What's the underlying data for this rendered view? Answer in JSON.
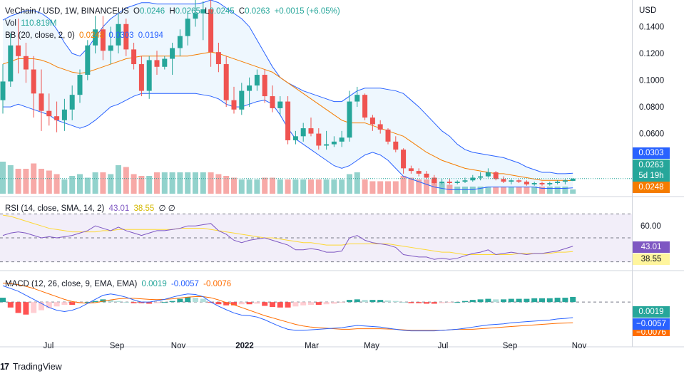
{
  "header": {
    "symbol": "VeChain / USD, 1W, BINANCEUS",
    "open_label": "O",
    "open": "0.0246",
    "high_label": "H",
    "high": "0.0265",
    "low_label": "L",
    "low": "0.0245",
    "close_label": "C",
    "close": "0.0263",
    "change": "+0.0015 (+6.05%)",
    "vol_label": "Vol",
    "vol": "110.819M",
    "bb_label": "BB (20, close, 2, 0)",
    "bb_mid": "0.0248",
    "bb_upper": "0.0303",
    "bb_lower": "0.0194"
  },
  "rsi_legend": {
    "label": "RSI (14, close, SMA, 14, 2)",
    "rsi": "43.01",
    "sma": "38.55",
    "extra": "∅ ∅"
  },
  "macd_legend": {
    "label": "MACD (12, 26, close, 9, EMA, EMA)",
    "hist": "0.0019",
    "macd": "-0.0057",
    "signal": "-0.0076"
  },
  "price_axis": {
    "currency": "USD",
    "ticks": [
      "0.1400",
      "0.1200",
      "0.1000",
      "0.0800",
      "0.0600"
    ]
  },
  "rsi_axis": {
    "ticks": [
      "60.00"
    ]
  },
  "price_tags": {
    "upper": "0.0303",
    "close": "0.0263",
    "countdown": "5d 19h",
    "mid": "0.0248"
  },
  "rsi_tags": {
    "rsi": "43.01",
    "sma": "38.55"
  },
  "macd_tags": {
    "hist": "0.0019",
    "macd": "−0.0057",
    "signal": "−0.0076"
  },
  "time_axis": [
    "Jul",
    "Sep",
    "Nov",
    "2022",
    "Mar",
    "May",
    "Jul",
    "Sep",
    "Nov"
  ],
  "branding": {
    "name": "TradingView"
  },
  "colors": {
    "up": "#26a69a",
    "down": "#ef5350",
    "bb_band": "#2962ff",
    "bb_mid": "#f57c00",
    "rsi_line": "#7e57c2",
    "rsi_sma": "#fdd835",
    "macd_line": "#2962ff",
    "signal_line": "#ff6d00"
  },
  "chart_data": {
    "type": "candlestick",
    "title": "VeChain / USD, 1W, BINANCEUS",
    "price_range": [
      0.015,
      0.16
    ],
    "weeks": 75,
    "ohlc": [
      [
        0.085,
        0.112,
        0.075,
        0.099
      ],
      [
        0.099,
        0.135,
        0.095,
        0.126
      ],
      [
        0.126,
        0.146,
        0.105,
        0.118
      ],
      [
        0.118,
        0.128,
        0.098,
        0.108
      ],
      [
        0.108,
        0.118,
        0.072,
        0.09
      ],
      [
        0.09,
        0.108,
        0.062,
        0.077
      ],
      [
        0.077,
        0.09,
        0.066,
        0.073
      ],
      [
        0.073,
        0.084,
        0.061,
        0.07
      ],
      [
        0.07,
        0.086,
        0.062,
        0.078
      ],
      [
        0.078,
        0.096,
        0.07,
        0.089
      ],
      [
        0.089,
        0.108,
        0.083,
        0.104
      ],
      [
        0.104,
        0.13,
        0.1,
        0.126
      ],
      [
        0.126,
        0.148,
        0.12,
        0.138
      ],
      [
        0.138,
        0.148,
        0.115,
        0.122
      ],
      [
        0.122,
        0.14,
        0.112,
        0.126
      ],
      [
        0.126,
        0.15,
        0.12,
        0.142
      ],
      [
        0.142,
        0.146,
        0.118,
        0.123
      ],
      [
        0.123,
        0.128,
        0.108,
        0.112
      ],
      [
        0.112,
        0.118,
        0.088,
        0.092
      ],
      [
        0.092,
        0.118,
        0.086,
        0.115
      ],
      [
        0.115,
        0.122,
        0.104,
        0.11
      ],
      [
        0.11,
        0.118,
        0.108,
        0.116
      ],
      [
        0.116,
        0.128,
        0.104,
        0.124
      ],
      [
        0.124,
        0.138,
        0.118,
        0.133
      ],
      [
        0.133,
        0.152,
        0.126,
        0.146
      ],
      [
        0.146,
        0.16,
        0.14,
        0.15
      ],
      [
        0.15,
        0.159,
        0.13,
        0.153
      ],
      [
        0.153,
        0.16,
        0.11,
        0.121
      ],
      [
        0.121,
        0.128,
        0.106,
        0.112
      ],
      [
        0.112,
        0.118,
        0.08,
        0.085
      ],
      [
        0.085,
        0.095,
        0.075,
        0.078
      ],
      [
        0.078,
        0.098,
        0.074,
        0.092
      ],
      [
        0.092,
        0.102,
        0.08,
        0.096
      ],
      [
        0.096,
        0.108,
        0.092,
        0.104
      ],
      [
        0.104,
        0.108,
        0.083,
        0.088
      ],
      [
        0.088,
        0.096,
        0.076,
        0.079
      ],
      [
        0.079,
        0.088,
        0.074,
        0.084
      ],
      [
        0.084,
        0.088,
        0.052,
        0.055
      ],
      [
        0.055,
        0.062,
        0.052,
        0.058
      ],
      [
        0.058,
        0.068,
        0.054,
        0.064
      ],
      [
        0.064,
        0.072,
        0.058,
        0.06
      ],
      [
        0.06,
        0.064,
        0.048,
        0.051
      ],
      [
        0.051,
        0.062,
        0.048,
        0.052
      ],
      [
        0.052,
        0.058,
        0.05,
        0.054
      ],
      [
        0.054,
        0.062,
        0.05,
        0.057
      ],
      [
        0.057,
        0.092,
        0.054,
        0.084
      ],
      [
        0.084,
        0.095,
        0.08,
        0.089
      ],
      [
        0.089,
        0.09,
        0.07,
        0.072
      ],
      [
        0.072,
        0.074,
        0.062,
        0.067
      ],
      [
        0.067,
        0.07,
        0.06,
        0.063
      ],
      [
        0.063,
        0.064,
        0.052,
        0.054
      ],
      [
        0.054,
        0.058,
        0.046,
        0.048
      ],
      [
        0.048,
        0.049,
        0.03,
        0.034
      ],
      [
        0.034,
        0.036,
        0.03,
        0.032
      ],
      [
        0.032,
        0.034,
        0.028,
        0.03
      ],
      [
        0.03,
        0.032,
        0.026,
        0.027
      ],
      [
        0.027,
        0.029,
        0.022,
        0.023
      ],
      [
        0.023,
        0.026,
        0.022,
        0.024
      ],
      [
        0.024,
        0.026,
        0.022,
        0.023
      ],
      [
        0.023,
        0.025,
        0.022,
        0.024
      ],
      [
        0.024,
        0.027,
        0.023,
        0.025
      ],
      [
        0.025,
        0.029,
        0.024,
        0.027
      ],
      [
        0.027,
        0.031,
        0.025,
        0.028
      ],
      [
        0.028,
        0.034,
        0.027,
        0.031
      ],
      [
        0.031,
        0.032,
        0.025,
        0.026
      ],
      [
        0.026,
        0.028,
        0.023,
        0.024
      ],
      [
        0.024,
        0.026,
        0.022,
        0.025
      ],
      [
        0.025,
        0.026,
        0.023,
        0.024
      ],
      [
        0.024,
        0.025,
        0.021,
        0.022
      ],
      [
        0.022,
        0.024,
        0.021,
        0.023
      ],
      [
        0.023,
        0.024,
        0.021,
        0.022
      ],
      [
        0.022,
        0.024,
        0.021,
        0.023
      ],
      [
        0.023,
        0.025,
        0.022,
        0.024
      ],
      [
        0.024,
        0.026,
        0.022,
        0.025
      ],
      [
        0.0246,
        0.0265,
        0.0245,
        0.0263
      ]
    ],
    "volume_range": [
      0,
      180
    ],
    "volume": [
      90,
      80,
      70,
      70,
      85,
      70,
      65,
      55,
      40,
      50,
      55,
      45,
      60,
      60,
      55,
      80,
      75,
      55,
      50,
      50,
      60,
      60,
      60,
      60,
      60,
      60,
      60,
      60,
      55,
      50,
      45,
      40,
      40,
      40,
      45,
      45,
      40,
      40,
      40,
      40,
      40,
      40,
      40,
      40,
      40,
      55,
      60,
      40,
      35,
      35,
      35,
      35,
      50,
      45,
      40,
      40,
      40,
      30,
      25,
      20,
      20,
      20,
      20,
      20,
      20,
      20,
      20,
      20,
      20,
      20,
      20,
      20,
      20,
      20,
      12
    ],
    "bb_upper": [
      0.145,
      0.148,
      0.15,
      0.152,
      0.152,
      0.15,
      0.146,
      0.138,
      0.128,
      0.12,
      0.118,
      0.124,
      0.132,
      0.14,
      0.146,
      0.15,
      0.154,
      0.156,
      0.158,
      0.158,
      0.157,
      0.157,
      0.157,
      0.157,
      0.157,
      0.157,
      0.158,
      0.16,
      0.158,
      0.154,
      0.15,
      0.146,
      0.14,
      0.13,
      0.12,
      0.11,
      0.102,
      0.098,
      0.095,
      0.092,
      0.09,
      0.088,
      0.086,
      0.084,
      0.084,
      0.088,
      0.092,
      0.094,
      0.094,
      0.094,
      0.093,
      0.092,
      0.09,
      0.085,
      0.08,
      0.074,
      0.068,
      0.062,
      0.058,
      0.052,
      0.048,
      0.046,
      0.045,
      0.044,
      0.043,
      0.042,
      0.04,
      0.038,
      0.035,
      0.033,
      0.031,
      0.031,
      0.03,
      0.03,
      0.0303
    ],
    "bb_mid": [
      0.112,
      0.114,
      0.116,
      0.116,
      0.116,
      0.115,
      0.113,
      0.11,
      0.108,
      0.106,
      0.105,
      0.106,
      0.108,
      0.11,
      0.112,
      0.114,
      0.116,
      0.117,
      0.118,
      0.118,
      0.118,
      0.118,
      0.118,
      0.118,
      0.118,
      0.119,
      0.12,
      0.121,
      0.12,
      0.118,
      0.116,
      0.114,
      0.112,
      0.11,
      0.108,
      0.106,
      0.102,
      0.098,
      0.094,
      0.09,
      0.086,
      0.082,
      0.078,
      0.074,
      0.07,
      0.068,
      0.068,
      0.068,
      0.066,
      0.064,
      0.062,
      0.06,
      0.058,
      0.054,
      0.05,
      0.046,
      0.043,
      0.04,
      0.038,
      0.036,
      0.034,
      0.033,
      0.032,
      0.031,
      0.03,
      0.03,
      0.029,
      0.028,
      0.027,
      0.026,
      0.025,
      0.025,
      0.025,
      0.025,
      0.0248
    ],
    "bb_lower": [
      0.08,
      0.08,
      0.082,
      0.08,
      0.078,
      0.076,
      0.074,
      0.07,
      0.068,
      0.066,
      0.064,
      0.066,
      0.07,
      0.075,
      0.08,
      0.082,
      0.085,
      0.088,
      0.09,
      0.09,
      0.09,
      0.09,
      0.09,
      0.09,
      0.09,
      0.09,
      0.089,
      0.088,
      0.086,
      0.082,
      0.08,
      0.08,
      0.082,
      0.084,
      0.085,
      0.082,
      0.074,
      0.064,
      0.056,
      0.052,
      0.048,
      0.044,
      0.04,
      0.036,
      0.034,
      0.036,
      0.04,
      0.044,
      0.046,
      0.044,
      0.04,
      0.034,
      0.028,
      0.026,
      0.024,
      0.022,
      0.02,
      0.019,
      0.018,
      0.018,
      0.018,
      0.018,
      0.019,
      0.02,
      0.02,
      0.02,
      0.02,
      0.02,
      0.02,
      0.02,
      0.019,
      0.019,
      0.019,
      0.019,
      0.0194
    ],
    "rsi_range": [
      25,
      75
    ],
    "rsi": [
      52,
      54,
      55,
      54,
      52,
      50,
      51,
      50,
      51,
      52,
      54,
      56,
      60,
      58,
      56,
      59,
      56,
      54,
      52,
      54,
      56,
      56,
      57,
      58,
      60,
      60,
      61,
      62,
      56,
      53,
      48,
      46,
      48,
      49,
      50,
      48,
      46,
      44,
      40,
      40,
      41,
      40,
      38,
      38,
      39,
      50,
      52,
      48,
      46,
      45,
      44,
      42,
      36,
      35,
      34,
      34,
      32,
      33,
      32,
      33,
      35,
      37,
      38,
      40,
      36,
      37,
      38,
      37,
      36,
      37,
      37,
      38,
      39,
      41,
      43.01
    ],
    "rsi_sma": [
      69,
      68,
      66,
      64,
      62,
      60,
      58,
      57,
      56,
      55,
      55,
      55,
      55,
      56,
      56,
      57,
      57,
      57,
      57,
      57,
      57,
      57,
      57,
      58,
      58,
      58,
      58,
      57,
      56,
      55,
      54,
      53,
      52,
      51,
      50,
      50,
      49,
      48,
      47,
      46,
      46,
      45,
      44,
      44,
      44,
      45,
      45,
      45,
      45,
      45,
      45,
      44,
      43,
      42,
      41,
      40,
      39,
      38,
      38,
      37,
      36,
      36,
      36,
      36,
      36,
      36,
      36,
      37,
      37,
      37,
      37,
      37,
      38,
      38,
      38.55
    ],
    "macd_range": [
      -0.012,
      0.01
    ],
    "macd_hist": [
      0.0016,
      -0.002,
      -0.004,
      -0.0046,
      -0.004,
      -0.003,
      -0.0022,
      -0.0016,
      -0.001,
      -0.001,
      -0.0004,
      0.0,
      0.0004,
      0.001,
      0.0008,
      0.0004,
      0.0,
      -0.0004,
      -0.0004,
      -0.0006,
      -0.0004,
      0.0,
      0.0004,
      0.0012,
      0.0018,
      0.0016,
      0.0012,
      -0.0002,
      -0.0008,
      -0.0012,
      -0.0012,
      -0.0008,
      -0.0008,
      -0.0006,
      -0.0014,
      -0.0018,
      -0.002,
      -0.002,
      -0.0016,
      -0.0012,
      -0.001,
      -0.001,
      -0.0008,
      -0.0006,
      -0.0002,
      0.0008,
      0.001,
      0.0008,
      0.0008,
      0.0008,
      0.0006,
      0.0004,
      0.0,
      -0.0004,
      -0.0004,
      -0.0006,
      -0.0006,
      -0.0004,
      -0.0002,
      0.0,
      0.0004,
      0.0008,
      0.001,
      0.0012,
      0.001,
      0.001,
      0.0012,
      0.0012,
      0.0012,
      0.0014,
      0.0014,
      0.0014,
      0.0016,
      0.0016,
      0.0019
    ],
    "macd_line": [
      0.006,
      0.005,
      0.004,
      0.0025,
      0.001,
      -0.0005,
      -0.002,
      -0.003,
      -0.0035,
      -0.003,
      -0.002,
      -0.0005,
      0.001,
      0.0025,
      0.003,
      0.0025,
      0.0018,
      0.0008,
      0.0,
      0.0,
      0.0005,
      0.001,
      0.0018,
      0.0025,
      0.003,
      0.0028,
      0.002,
      0.0,
      -0.0015,
      -0.0028,
      -0.004,
      -0.0048,
      -0.005,
      -0.0055,
      -0.0065,
      -0.0078,
      -0.009,
      -0.01,
      -0.0104,
      -0.0104,
      -0.0102,
      -0.01,
      -0.0098,
      -0.0096,
      -0.0094,
      -0.009,
      -0.0086,
      -0.0088,
      -0.009,
      -0.0092,
      -0.0096,
      -0.01,
      -0.0104,
      -0.0106,
      -0.0106,
      -0.0106,
      -0.0106,
      -0.0104,
      -0.0102,
      -0.01,
      -0.0096,
      -0.0092,
      -0.0088,
      -0.0084,
      -0.0082,
      -0.008,
      -0.0076,
      -0.0074,
      -0.0072,
      -0.007,
      -0.0068,
      -0.0066,
      -0.0062,
      -0.006,
      -0.0057
    ],
    "signal_line": [
      0.007,
      0.0068,
      0.0064,
      0.0058,
      0.005,
      0.004,
      0.003,
      0.002,
      0.001,
      0.0002,
      -0.0002,
      -0.0004,
      -0.0002,
      0.0003,
      0.0008,
      0.0012,
      0.0014,
      0.0014,
      0.0012,
      0.001,
      0.0009,
      0.001,
      0.0012,
      0.0015,
      0.0018,
      0.002,
      0.002,
      0.0016,
      0.0008,
      -0.0002,
      -0.001,
      -0.002,
      -0.003,
      -0.004,
      -0.005,
      -0.0058,
      -0.0066,
      -0.0074,
      -0.0082,
      -0.0088,
      -0.0092,
      -0.0094,
      -0.0096,
      -0.0098,
      -0.01,
      -0.01,
      -0.0098,
      -0.0098,
      -0.0098,
      -0.0098,
      -0.0099,
      -0.01,
      -0.0102,
      -0.0104,
      -0.0104,
      -0.0104,
      -0.0104,
      -0.0104,
      -0.0102,
      -0.01,
      -0.01,
      -0.01,
      -0.0098,
      -0.0096,
      -0.0094,
      -0.0092,
      -0.009,
      -0.0088,
      -0.0086,
      -0.0084,
      -0.0082,
      -0.008,
      -0.0078,
      -0.0077,
      -0.0076
    ]
  }
}
